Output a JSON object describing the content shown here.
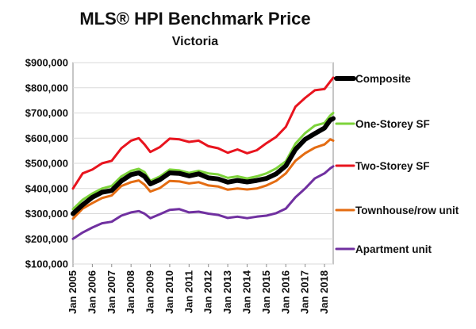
{
  "chart_data": {
    "type": "line",
    "title": "MLS® HPI Benchmark Price",
    "subtitle": "Victoria",
    "xlabel": "",
    "ylabel": "",
    "ylim": [
      100000,
      900000
    ],
    "y_ticks": [
      100000,
      200000,
      300000,
      400000,
      500000,
      600000,
      700000,
      800000,
      900000
    ],
    "y_tick_labels": [
      "$100,000",
      "$200,000",
      "$300,000",
      "$400,000",
      "$500,000",
      "$600,000",
      "$700,000",
      "$800,000",
      "$900,000"
    ],
    "xlim": [
      2005.0,
      2018.45
    ],
    "x_ticks": [
      2005,
      2006,
      2007,
      2008,
      2009,
      2010,
      2011,
      2012,
      2013,
      2014,
      2015,
      2016,
      2017,
      2018
    ],
    "x_tick_labels": [
      "Jan 2005",
      "Jan 2006",
      "Jan 2007",
      "Jan 2008",
      "Jan 2009",
      "Jan 2010",
      "Jan 2011",
      "Jan 2012",
      "Jan 2013",
      "Jan 2014",
      "Jan 2015",
      "Jan 2016",
      "Jan 2017",
      "Jan 2018"
    ],
    "grid": true,
    "legend_position": "right",
    "x": [
      2005.0,
      2005.5,
      2006.0,
      2006.5,
      2007.0,
      2007.5,
      2008.0,
      2008.4,
      2008.7,
      2009.0,
      2009.5,
      2010.0,
      2010.5,
      2011.0,
      2011.5,
      2012.0,
      2012.5,
      2013.0,
      2013.5,
      2014.0,
      2014.5,
      2015.0,
      2015.5,
      2016.0,
      2016.5,
      2017.0,
      2017.5,
      2018.0,
      2018.3,
      2018.45
    ],
    "series": [
      {
        "name": "Composite",
        "color": "#000000",
        "width": 6,
        "values": [
          300000,
          335000,
          365000,
          385000,
          392000,
          430000,
          455000,
          462000,
          448000,
          418000,
          435000,
          462000,
          460000,
          450000,
          458000,
          442000,
          438000,
          425000,
          432000,
          426000,
          432000,
          440000,
          458000,
          490000,
          555000,
          595000,
          618000,
          640000,
          672000,
          678000
        ]
      },
      {
        "name": "One-Storey SF",
        "color": "#7dd33b",
        "width": 3,
        "values": [
          318000,
          355000,
          380000,
          400000,
          410000,
          448000,
          470000,
          478000,
          465000,
          430000,
          448000,
          475000,
          472000,
          462000,
          470000,
          460000,
          456000,
          442000,
          448000,
          440000,
          448000,
          460000,
          480000,
          508000,
          578000,
          620000,
          650000,
          660000,
          690000,
          700000
        ]
      },
      {
        "name": "Two-Storey SF",
        "color": "#e8141e",
        "width": 3,
        "values": [
          400000,
          460000,
          475000,
          500000,
          510000,
          560000,
          590000,
          600000,
          575000,
          545000,
          565000,
          598000,
          595000,
          585000,
          590000,
          568000,
          560000,
          542000,
          555000,
          540000,
          552000,
          580000,
          605000,
          645000,
          725000,
          760000,
          790000,
          795000,
          825000,
          840000
        ]
      },
      {
        "name": "Townhouse/row unit",
        "color": "#e46c12",
        "width": 3,
        "values": [
          280000,
          320000,
          342000,
          362000,
          372000,
          410000,
          425000,
          432000,
          415000,
          388000,
          402000,
          430000,
          428000,
          420000,
          425000,
          412000,
          408000,
          395000,
          400000,
          396000,
          400000,
          412000,
          430000,
          460000,
          510000,
          540000,
          562000,
          575000,
          595000,
          590000
        ]
      },
      {
        "name": "Apartment unit",
        "color": "#7030a0",
        "width": 3,
        "values": [
          200000,
          225000,
          245000,
          262000,
          268000,
          292000,
          305000,
          310000,
          300000,
          282000,
          298000,
          315000,
          318000,
          305000,
          308000,
          300000,
          295000,
          283000,
          288000,
          282000,
          288000,
          292000,
          302000,
          320000,
          365000,
          400000,
          440000,
          460000,
          480000,
          488000
        ]
      }
    ]
  }
}
